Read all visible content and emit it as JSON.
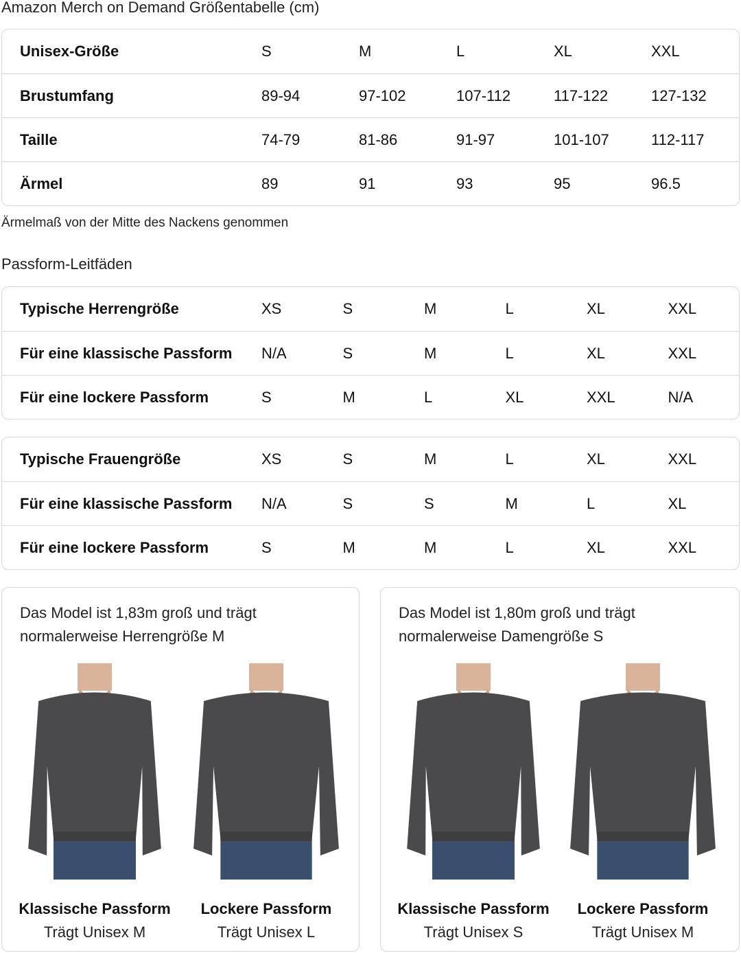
{
  "title": "Amazon Merch on Demand Größentabelle (cm)",
  "size_table": {
    "rows": [
      {
        "label": "Unisex-Größe",
        "values": [
          "S",
          "M",
          "L",
          "XL",
          "XXL"
        ]
      },
      {
        "label": "Brustumfang",
        "values": [
          "89-94",
          "97-102",
          "107-112",
          "117-122",
          "127-132"
        ]
      },
      {
        "label": "Taille",
        "values": [
          "74-79",
          "81-86",
          "91-97",
          "101-107",
          "112-117"
        ]
      },
      {
        "label": "Ärmel",
        "values": [
          "89",
          "91",
          "93",
          "95",
          "96.5"
        ]
      }
    ]
  },
  "note": "Ärmelmaß von der Mitte des Nackens genommen",
  "fit_heading": "Passform-Leitfäden",
  "men_table": {
    "rows": [
      {
        "label": "Typische Herrengröße",
        "values": [
          "XS",
          "S",
          "M",
          "L",
          "XL",
          "XXL"
        ]
      },
      {
        "label": "Für eine klassische Passform",
        "values": [
          "N/A",
          "S",
          "M",
          "L",
          "XL",
          "XXL"
        ]
      },
      {
        "label": "Für eine lockere Passform",
        "values": [
          "S",
          "M",
          "L",
          "XL",
          "XXL",
          "N/A"
        ]
      }
    ]
  },
  "women_table": {
    "rows": [
      {
        "label": "Typische Frauengröße",
        "values": [
          "XS",
          "S",
          "M",
          "L",
          "XL",
          "XXL"
        ]
      },
      {
        "label": "Für eine klassische Passform",
        "values": [
          "N/A",
          "S",
          "S",
          "M",
          "L",
          "XL"
        ]
      },
      {
        "label": "Für eine lockere Passform",
        "values": [
          "S",
          "M",
          "M",
          "L",
          "XL",
          "XXL"
        ]
      }
    ]
  },
  "cards": [
    {
      "caption_1": "Das Model ist 1,83m groß und trägt",
      "caption_2": "normalerweise Herrengröße M",
      "figures": [
        {
          "fit": "Klassische Passform",
          "wears": "Trägt Unisex M"
        },
        {
          "fit": "Lockere Passform",
          "wears": "Trägt Unisex L"
        }
      ]
    },
    {
      "caption_1": "Das Model ist 1,80m groß und trägt",
      "caption_2": "normalerweise Damengröße S",
      "figures": [
        {
          "fit": "Klassische Passform",
          "wears": "Trägt Unisex S"
        },
        {
          "fit": "Lockere Passform",
          "wears": "Trägt Unisex M"
        }
      ]
    }
  ],
  "colors": {
    "sweatshirt": "#4a4a4c",
    "border": "#d5d9d9",
    "jeans": "#3a4f6e"
  }
}
